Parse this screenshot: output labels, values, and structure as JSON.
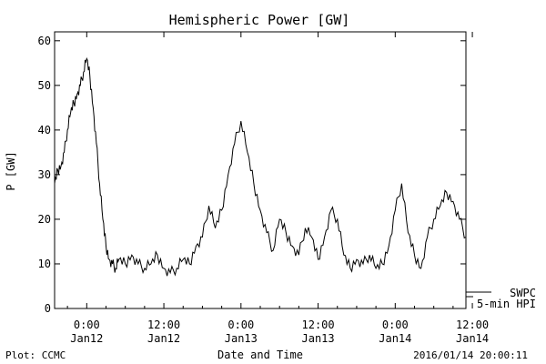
{
  "chart_data": {
    "type": "line",
    "title": "Hemispheric Power [GW]",
    "xlabel": "Date and Time",
    "ylabel": "P [GW]",
    "ylim": [
      0,
      62
    ],
    "xlim_hours": [
      -5,
      59
    ],
    "y_ticks": [
      0,
      10,
      20,
      30,
      40,
      50,
      60
    ],
    "x_ticks": [
      {
        "hour": 0,
        "time": "0:00",
        "date": "Jan12"
      },
      {
        "hour": 12,
        "time": "12:00",
        "date": "Jan12"
      },
      {
        "hour": 24,
        "time": "0:00",
        "date": "Jan13"
      },
      {
        "hour": 36,
        "time": "12:00",
        "date": "Jan13"
      },
      {
        "hour": 48,
        "time": "0:00",
        "date": "Jan14"
      },
      {
        "hour": 60,
        "time": "12:00",
        "date": "Jan14"
      }
    ],
    "series": [
      {
        "name": "5-min HPI",
        "x_hours": [
          -5,
          -4.5,
          -4,
          -3.5,
          -3,
          -2.5,
          -2,
          -1.5,
          -1,
          -0.5,
          0,
          0.5,
          1,
          1.5,
          2,
          2.5,
          3,
          3.5,
          4,
          4.5,
          5,
          6,
          7,
          8,
          9,
          10,
          11,
          12,
          13,
          14,
          15,
          16,
          17,
          18,
          19,
          20,
          21,
          22,
          23,
          24,
          25,
          26,
          27,
          28,
          29,
          30,
          31,
          32,
          33,
          34,
          35,
          36,
          37,
          38,
          39,
          40,
          41,
          42,
          43,
          44,
          45,
          46,
          47,
          48,
          49,
          50,
          51,
          52,
          53,
          54,
          55,
          56,
          57,
          58,
          59
        ],
        "values": [
          28,
          31,
          32,
          35,
          40,
          44,
          46,
          48,
          50,
          53,
          56,
          52,
          45,
          37,
          28,
          20,
          14,
          11,
          10,
          9,
          11,
          10,
          12,
          10,
          9,
          10,
          12,
          9,
          8,
          9,
          11,
          10,
          14,
          16,
          23,
          18,
          22,
          30,
          37,
          42,
          35,
          28,
          22,
          17,
          13,
          20,
          17,
          14,
          12,
          18,
          16,
          11,
          16,
          22,
          20,
          12,
          9,
          11,
          10,
          12,
          9,
          10,
          14,
          22,
          28,
          17,
          12,
          9,
          16,
          20,
          23,
          26,
          24,
          20,
          16
        ]
      },
      {
        "name": "SWPC",
        "x_hours": [],
        "values": []
      }
    ],
    "legend_position": "bottom-right, outside plot",
    "grid": false
  },
  "footer": {
    "left": "Plot: CCMC",
    "right": "2016/01/14 20:00:11"
  }
}
